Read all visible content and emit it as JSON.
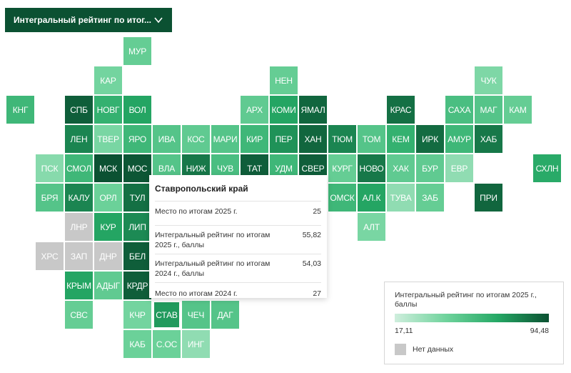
{
  "selector": {
    "label": "Интегральный рейтинг по итог..."
  },
  "colors": {
    "header": "#0b5132",
    "no_data": "#c8c8c8",
    "scale_low": "#cfeedd",
    "scale_high": "#0b5132"
  },
  "legend": {
    "title": "Интегральный рейтинг по итогам 2025 г., баллы",
    "min": "17,11",
    "max": "94,48",
    "no_data": "Нет данных"
  },
  "tooltip": {
    "region": "Ставропольский край",
    "rows": [
      {
        "label": "Место по итогам 2025 г.",
        "value": "25"
      },
      {
        "label": "Интегральный рейтинг по итогам 2025 г., баллы",
        "value": "55,82"
      },
      {
        "label": "Интегральный рейтинг по итогам 2024 г., баллы",
        "value": "54,03"
      },
      {
        "label": "Место по итогам 2024 г.",
        "value": "27"
      }
    ]
  },
  "regions": [
    {
      "code": "МУР",
      "row": 0,
      "col": 4,
      "shade": 0.38
    },
    {
      "code": "КАР",
      "row": 1,
      "col": 3,
      "shade": 0.32
    },
    {
      "code": "НЕН",
      "row": 1,
      "col": 9,
      "shade": 0.38
    },
    {
      "code": "ЧУК",
      "row": 1,
      "col": 16,
      "shade": 0.28
    },
    {
      "code": "КНГ",
      "row": 2,
      "col": 0,
      "shade": 0.55
    },
    {
      "code": "СПБ",
      "row": 2,
      "col": 2,
      "shade": 0.95
    },
    {
      "code": "НОВГ",
      "row": 2,
      "col": 3,
      "shade": 0.6
    },
    {
      "code": "ВОЛ",
      "row": 2,
      "col": 4,
      "shade": 0.68
    },
    {
      "code": "АРХ",
      "row": 2,
      "col": 8,
      "shade": 0.4
    },
    {
      "code": "КОМИ",
      "row": 2,
      "col": 9,
      "shade": 0.68
    },
    {
      "code": "ЯМАЛ",
      "row": 2,
      "col": 10,
      "shade": 0.92
    },
    {
      "code": "КРАС",
      "row": 2,
      "col": 13,
      "shade": 0.88
    },
    {
      "code": "САХА",
      "row": 2,
      "col": 15,
      "shade": 0.5
    },
    {
      "code": "МАГ",
      "row": 2,
      "col": 16,
      "shade": 0.45
    },
    {
      "code": "КАМ",
      "row": 2,
      "col": 17,
      "shade": 0.38
    },
    {
      "code": "ЛЕН",
      "row": 3,
      "col": 2,
      "shade": 0.8
    },
    {
      "code": "ТВЕР",
      "row": 3,
      "col": 3,
      "shade": 0.3
    },
    {
      "code": "ЯРО",
      "row": 3,
      "col": 4,
      "shade": 0.55
    },
    {
      "code": "ИВА",
      "row": 3,
      "col": 5,
      "shade": 0.45
    },
    {
      "code": "КОС",
      "row": 3,
      "col": 6,
      "shade": 0.4
    },
    {
      "code": "МАРИ",
      "row": 3,
      "col": 7,
      "shade": 0.45
    },
    {
      "code": "КИР",
      "row": 3,
      "col": 8,
      "shade": 0.55
    },
    {
      "code": "ПЕР",
      "row": 3,
      "col": 9,
      "shade": 0.75
    },
    {
      "code": "ХАН",
      "row": 3,
      "col": 10,
      "shade": 0.92
    },
    {
      "code": "ТЮМ",
      "row": 3,
      "col": 11,
      "shade": 0.8
    },
    {
      "code": "ТОМ",
      "row": 3,
      "col": 12,
      "shade": 0.45
    },
    {
      "code": "КЕМ",
      "row": 3,
      "col": 13,
      "shade": 0.6
    },
    {
      "code": "ИРК",
      "row": 3,
      "col": 14,
      "shade": 0.9
    },
    {
      "code": "АМУР",
      "row": 3,
      "col": 15,
      "shade": 0.55
    },
    {
      "code": "ХАБ",
      "row": 3,
      "col": 16,
      "shade": 0.85
    },
    {
      "code": "ПСК",
      "row": 4,
      "col": 1,
      "shade": 0.25
    },
    {
      "code": "СМОЛ",
      "row": 4,
      "col": 2,
      "shade": 0.55
    },
    {
      "code": "МСК",
      "row": 4,
      "col": 3,
      "shade": 1.0
    },
    {
      "code": "МОС",
      "row": 4,
      "col": 4,
      "shade": 0.98
    },
    {
      "code": "ВЛА",
      "row": 4,
      "col": 5,
      "shade": 0.45
    },
    {
      "code": "НИЖ",
      "row": 4,
      "col": 6,
      "shade": 0.85
    },
    {
      "code": "ЧУВ",
      "row": 4,
      "col": 7,
      "shade": 0.5
    },
    {
      "code": "ТАТ",
      "row": 4,
      "col": 8,
      "shade": 0.95
    },
    {
      "code": "УДМ",
      "row": 4,
      "col": 9,
      "shade": 0.55
    },
    {
      "code": "СВЕР",
      "row": 4,
      "col": 10,
      "shade": 0.95
    },
    {
      "code": "КУРГ",
      "row": 4,
      "col": 11,
      "shade": 0.38
    },
    {
      "code": "НОВО",
      "row": 4,
      "col": 12,
      "shade": 0.85
    },
    {
      "code": "ХАК",
      "row": 4,
      "col": 13,
      "shade": 0.4
    },
    {
      "code": "БУР",
      "row": 4,
      "col": 14,
      "shade": 0.4
    },
    {
      "code": "ЕВР",
      "row": 4,
      "col": 15,
      "shade": 0.22
    },
    {
      "code": "СХЛН",
      "row": 4,
      "col": 18,
      "shade": 0.65
    },
    {
      "code": "БРЯ",
      "row": 5,
      "col": 1,
      "shade": 0.45
    },
    {
      "code": "КАЛУ",
      "row": 5,
      "col": 2,
      "shade": 0.8
    },
    {
      "code": "ОРЛ",
      "row": 5,
      "col": 3,
      "shade": 0.35
    },
    {
      "code": "ТУЛ",
      "row": 5,
      "col": 4,
      "shade": 0.88
    },
    {
      "code": "ОМСК",
      "row": 5,
      "col": 11,
      "shade": 0.55
    },
    {
      "code": "АЛ.К",
      "row": 5,
      "col": 12,
      "shade": 0.68
    },
    {
      "code": "ТУВА",
      "row": 5,
      "col": 13,
      "shade": 0.22
    },
    {
      "code": "ЗАБ",
      "row": 5,
      "col": 14,
      "shade": 0.38
    },
    {
      "code": "ПРИ",
      "row": 5,
      "col": 16,
      "shade": 0.92
    },
    {
      "code": "ЛНР",
      "row": 6,
      "col": 2,
      "shade": -1
    },
    {
      "code": "КУР",
      "row": 6,
      "col": 3,
      "shade": 0.68
    },
    {
      "code": "ЛИП",
      "row": 6,
      "col": 4,
      "shade": 0.78
    },
    {
      "code": "АЛТ",
      "row": 6,
      "col": 12,
      "shade": 0.3
    },
    {
      "code": "ХРС",
      "row": 7,
      "col": 1,
      "shade": -1
    },
    {
      "code": "ЗАП",
      "row": 7,
      "col": 2,
      "shade": -1
    },
    {
      "code": "ДНР",
      "row": 7,
      "col": 3,
      "shade": -1
    },
    {
      "code": "БЕЛ",
      "row": 7,
      "col": 4,
      "shade": 0.95
    },
    {
      "code": "КРЫМ",
      "row": 8,
      "col": 2,
      "shade": 0.68
    },
    {
      "code": "АДЫГ",
      "row": 8,
      "col": 3,
      "shade": 0.4
    },
    {
      "code": "КРДР",
      "row": 8,
      "col": 4,
      "shade": 0.95
    },
    {
      "code": "СВС",
      "row": 9,
      "col": 2,
      "shade": 0.38
    },
    {
      "code": "КЧР",
      "row": 9,
      "col": 4,
      "shade": 0.32
    },
    {
      "code": "СТАВ",
      "row": 9,
      "col": 5,
      "shade": 0.72,
      "active": true
    },
    {
      "code": "ЧЕЧ",
      "row": 9,
      "col": 6,
      "shade": 0.45
    },
    {
      "code": "ДАГ",
      "row": 9,
      "col": 7,
      "shade": 0.45
    },
    {
      "code": "КАБ",
      "row": 10,
      "col": 4,
      "shade": 0.35
    },
    {
      "code": "С.ОС",
      "row": 10,
      "col": 5,
      "shade": 0.35
    },
    {
      "code": "ИНГ",
      "row": 10,
      "col": 6,
      "shade": 0.22
    }
  ]
}
